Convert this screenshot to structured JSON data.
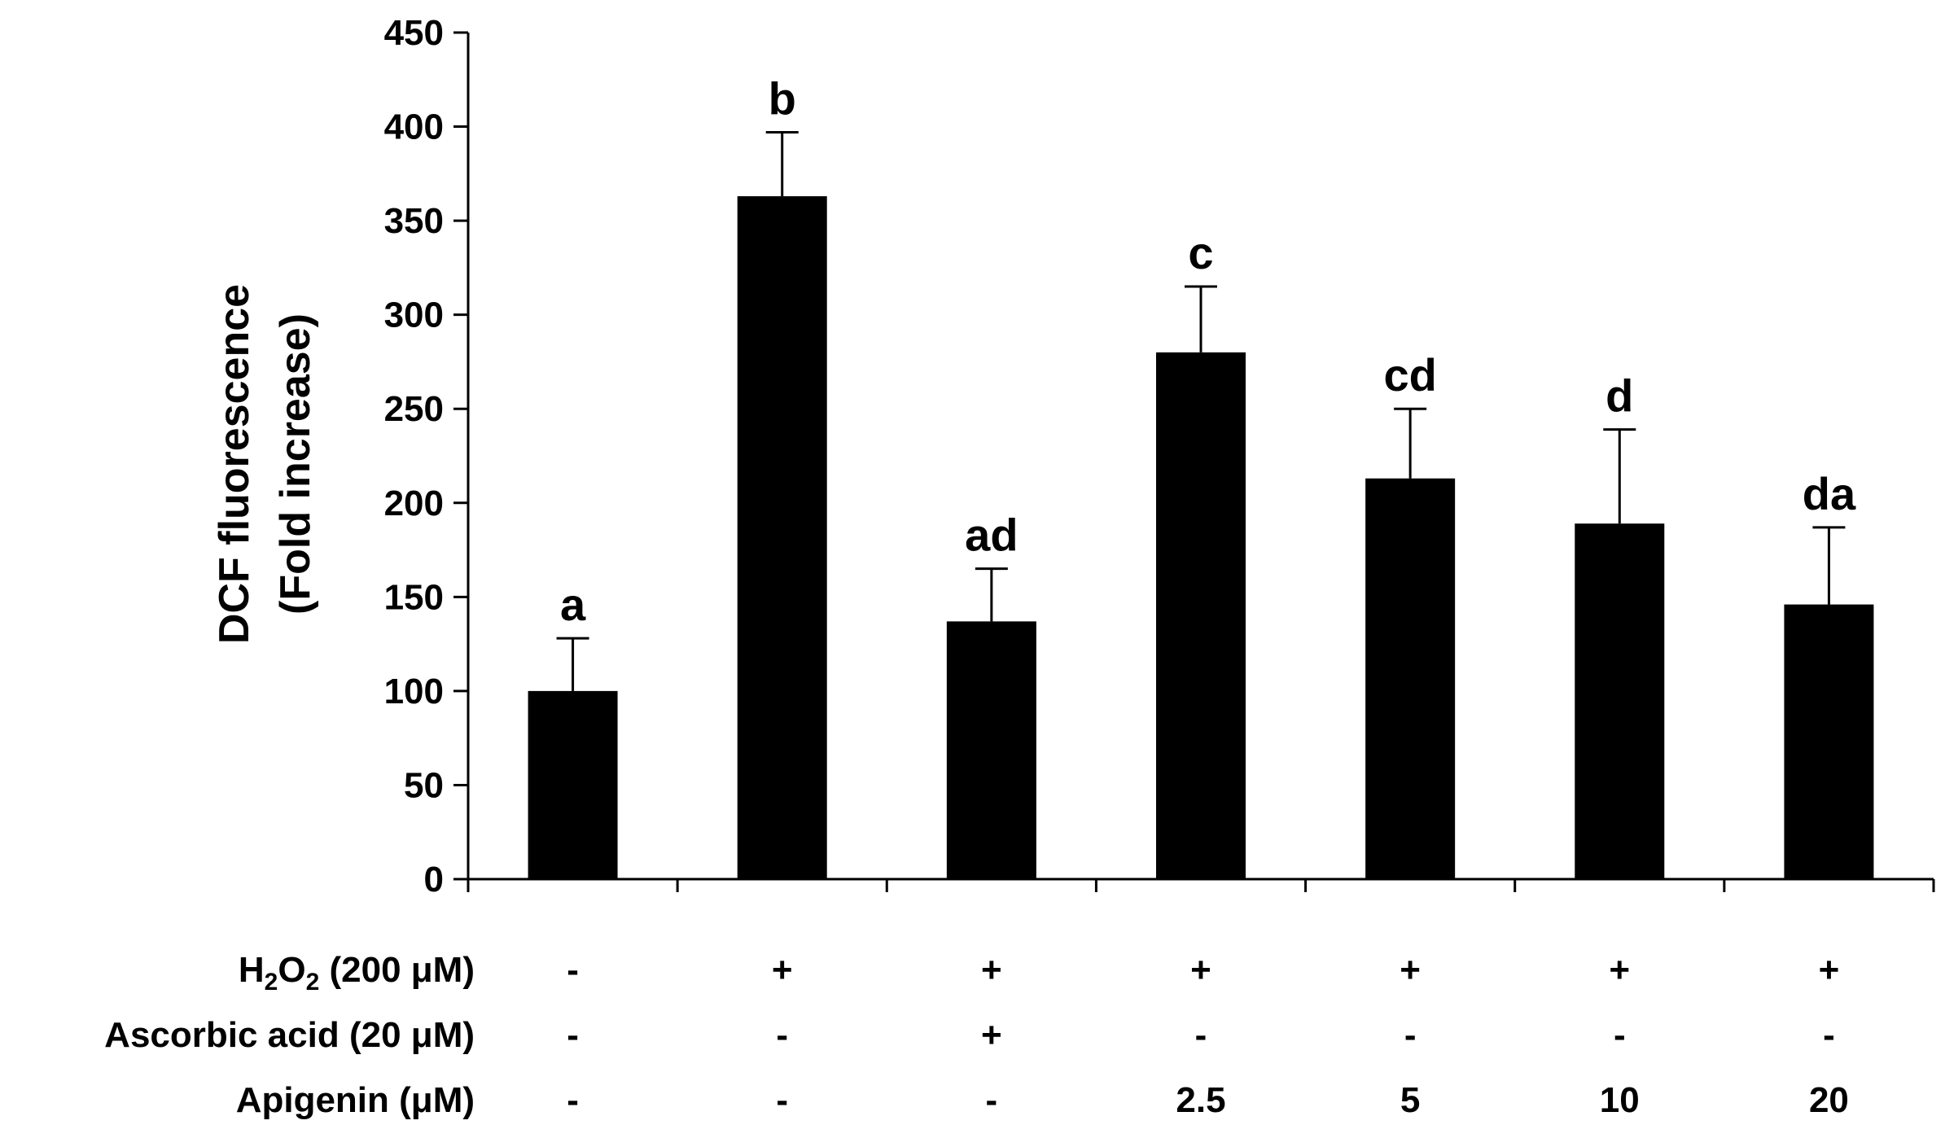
{
  "chart_data": {
    "type": "bar",
    "title": "",
    "xlabel": "",
    "ylabel": [
      "DCF fluorescence",
      "(Fold increase)"
    ],
    "ylim": [
      0,
      450
    ],
    "yticks": [
      0,
      50,
      100,
      150,
      200,
      250,
      300,
      350,
      400,
      450
    ],
    "bar_color": "#000000",
    "values": [
      100,
      363,
      137,
      280,
      213,
      189,
      146
    ],
    "errors": [
      28,
      34,
      28,
      35,
      37,
      50,
      41
    ],
    "significance": [
      "a",
      "b",
      "ad",
      "c",
      "cd",
      "d",
      "da"
    ],
    "treatments": [
      {
        "label_main": "H",
        "label_sub1": "2",
        "label_mid": "O",
        "label_sub2": "2",
        "label_rest": " (200  μM)",
        "cells": [
          "-",
          "+",
          "+",
          "+",
          "+",
          "+",
          "+"
        ]
      },
      {
        "label": "Ascorbic  acid (20 μM)",
        "cells": [
          "-",
          "-",
          "+",
          "-",
          "-",
          "-",
          "-"
        ]
      },
      {
        "label": "Apigenin (μM)",
        "cells": [
          "-",
          "-",
          "-",
          "2.5",
          "5",
          "10",
          "20"
        ]
      }
    ]
  }
}
